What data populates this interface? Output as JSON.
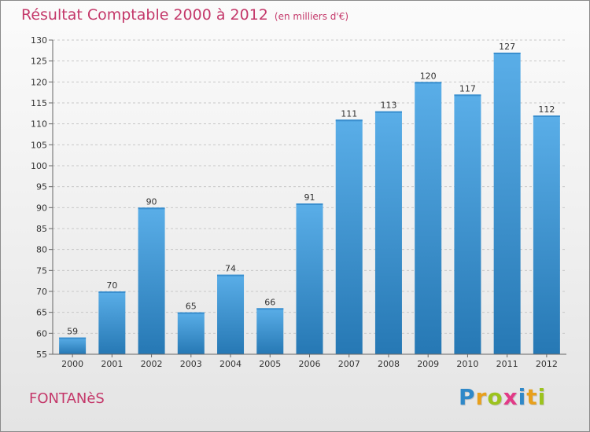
{
  "header": {
    "title": "Résultat Comptable 2000 à 2012",
    "unit": "(en milliers d'€)"
  },
  "commune": "FONTANèS",
  "logo": {
    "letters": [
      "P",
      "r",
      "o",
      "x",
      "i",
      "t",
      "i"
    ],
    "colors": [
      "#2f88c8",
      "#e8a01c",
      "#9cc31e",
      "#e23a87",
      "#2f88c8",
      "#e8a01c",
      "#9cc31e"
    ]
  },
  "chart_data": {
    "type": "bar",
    "title": "Résultat Comptable 2000 à 2012",
    "categories": [
      "2000",
      "2001",
      "2002",
      "2003",
      "2004",
      "2005",
      "2006",
      "2007",
      "2008",
      "2009",
      "2010",
      "2011",
      "2012"
    ],
    "values": [
      59,
      70,
      90,
      65,
      74,
      66,
      91,
      111,
      113,
      120,
      117,
      127,
      112
    ],
    "ylim": [
      55,
      130
    ],
    "yticks": [
      55,
      60,
      65,
      70,
      75,
      80,
      85,
      90,
      95,
      100,
      105,
      110,
      115,
      120,
      125,
      130
    ],
    "xlabel": "",
    "ylabel": "",
    "grid": true,
    "legend": "none",
    "colors": {
      "bar_light": "#5aaee8",
      "bar_dark": "#2678b4",
      "label": "#333333"
    }
  }
}
